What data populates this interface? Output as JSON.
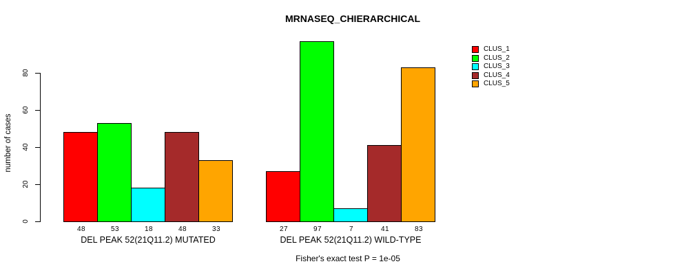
{
  "chart_data": {
    "type": "bar",
    "title": "MRNASEQ_CHIERARCHICAL",
    "ylabel": "number of cases",
    "xlabel": "",
    "yticks": [
      0,
      20,
      40,
      60,
      80
    ],
    "ylim": [
      0,
      100
    ],
    "grid": false,
    "legend_position": "right",
    "categories": [
      "DEL PEAK 52(21Q11.2) MUTATED",
      "DEL PEAK 52(21Q11.2) WILD-TYPE"
    ],
    "series": [
      {
        "name": "CLUS_1",
        "color": "#FF0000",
        "values": [
          48,
          27
        ]
      },
      {
        "name": "CLUS_2",
        "color": "#00FF00",
        "values": [
          53,
          97
        ]
      },
      {
        "name": "CLUS_3",
        "color": "#00FFFF",
        "values": [
          18,
          7
        ]
      },
      {
        "name": "CLUS_4",
        "color": "#A52A2A",
        "values": [
          48,
          41
        ]
      },
      {
        "name": "CLUS_5",
        "color": "#FFA500",
        "values": [
          33,
          83
        ]
      }
    ],
    "bar_value_labels": [
      [
        48,
        53,
        18,
        48,
        33
      ],
      [
        27,
        97,
        7,
        41,
        83
      ]
    ],
    "annotation": "Fisher's exact test P = 1e-05"
  }
}
